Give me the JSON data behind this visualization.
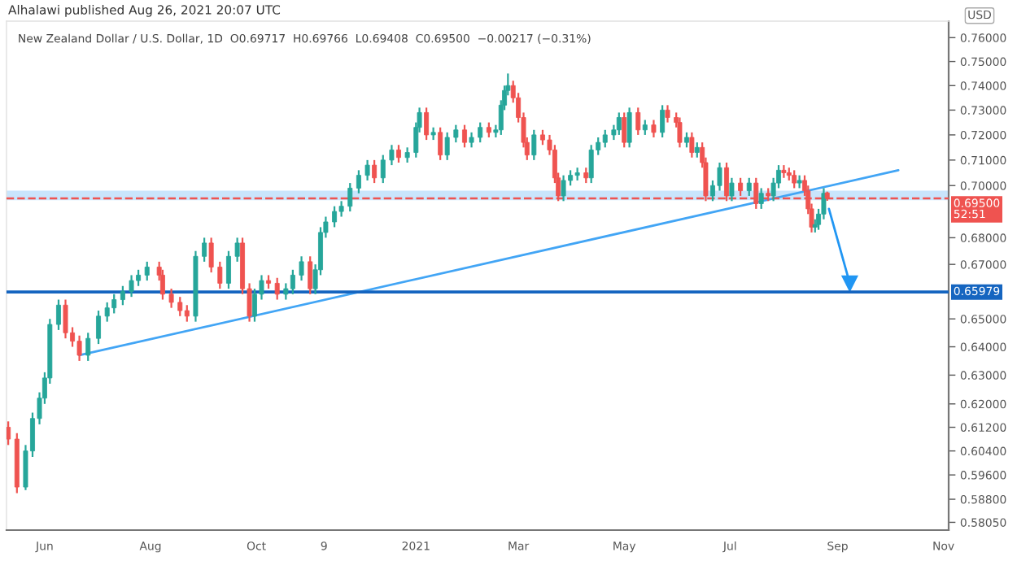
{
  "chart_data": {
    "type": "candlestick",
    "title": "Alhalawi published Aug 26, 2021 20:07 UTC",
    "subtitle": "New Zealand Dollar / U.S. Dollar, 1D  O0.69717  H0.69766  L0.69408  C0.69500  −0.00217 (−0.31%)",
    "ylabel": "USD",
    "log": true,
    "x": [
      "2020-05-11",
      "2020-05-16",
      "2020-05-21",
      "2020-05-25",
      "2020-05-29",
      "2020-06-01",
      "2020-06-04",
      "2020-06-09",
      "2020-06-13",
      "2020-06-17",
      "2020-06-21",
      "2020-06-26",
      "2020-07-02",
      "2020-07-07",
      "2020-07-11",
      "2020-07-16",
      "2020-07-21",
      "2020-07-25",
      "2020-07-30",
      "2020-08-06",
      "2020-08-08",
      "2020-08-13",
      "2020-08-18",
      "2020-08-22",
      "2020-08-27",
      "2020-09-01",
      "2020-09-05",
      "2020-09-10",
      "2020-09-15",
      "2020-09-20",
      "2020-09-23",
      "2020-09-27",
      "2020-09-30",
      "2020-10-04",
      "2020-10-08",
      "2020-10-13",
      "2020-10-18",
      "2020-10-22",
      "2020-10-27",
      "2020-11-01",
      "2020-11-04",
      "2020-11-07",
      "2020-11-10",
      "2020-11-15",
      "2020-11-19",
      "2020-11-24",
      "2020-11-29",
      "2020-12-04",
      "2020-12-08",
      "2020-12-13",
      "2020-12-18",
      "2020-12-22",
      "2020-12-27",
      "2021-01-01",
      "2021-01-03",
      "2021-01-07",
      "2021-01-11",
      "2021-01-15",
      "2021-01-19",
      "2021-01-24",
      "2021-01-29",
      "2021-02-02",
      "2021-02-07",
      "2021-02-12",
      "2021-02-16",
      "2021-02-19",
      "2021-02-21",
      "2021-02-23",
      "2021-02-26",
      "2021-03-01",
      "2021-03-04",
      "2021-03-06",
      "2021-03-10",
      "2021-03-15",
      "2021-03-19",
      "2021-03-22",
      "2021-03-24",
      "2021-03-27",
      "2021-03-31",
      "2021-04-04",
      "2021-04-09",
      "2021-04-12",
      "2021-04-16",
      "2021-04-20",
      "2021-04-25",
      "2021-04-28",
      "2021-05-01",
      "2021-05-04",
      "2021-05-09",
      "2021-05-13",
      "2021-05-18",
      "2021-05-23",
      "2021-05-26",
      "2021-05-31",
      "2021-06-02",
      "2021-06-06",
      "2021-06-09",
      "2021-06-12",
      "2021-06-15",
      "2021-06-17",
      "2021-06-21",
      "2021-06-25",
      "2021-06-29",
      "2021-07-02",
      "2021-07-07",
      "2021-07-12",
      "2021-07-16",
      "2021-07-19",
      "2021-07-23",
      "2021-07-26",
      "2021-07-29",
      "2021-08-01",
      "2021-08-04",
      "2021-08-07",
      "2021-08-10",
      "2021-08-13",
      "2021-08-15",
      "2021-08-17",
      "2021-08-19",
      "2021-08-21",
      "2021-08-24",
      "2021-08-26"
    ],
    "ohlc": [
      [
        0.612,
        0.614,
        0.606,
        0.608
      ],
      [
        0.608,
        0.61,
        0.59,
        0.592
      ],
      [
        0.592,
        0.606,
        0.591,
        0.604
      ],
      [
        0.604,
        0.617,
        0.602,
        0.615
      ],
      [
        0.615,
        0.624,
        0.613,
        0.622
      ],
      [
        0.622,
        0.631,
        0.62,
        0.629
      ],
      [
        0.629,
        0.65,
        0.627,
        0.648
      ],
      [
        0.648,
        0.657,
        0.646,
        0.655
      ],
      [
        0.655,
        0.657,
        0.643,
        0.645
      ],
      [
        0.645,
        0.647,
        0.64,
        0.642
      ],
      [
        0.642,
        0.644,
        0.635,
        0.637
      ],
      [
        0.637,
        0.645,
        0.635,
        0.643
      ],
      [
        0.643,
        0.653,
        0.641,
        0.651
      ],
      [
        0.651,
        0.656,
        0.649,
        0.654
      ],
      [
        0.654,
        0.659,
        0.652,
        0.657
      ],
      [
        0.657,
        0.662,
        0.655,
        0.66
      ],
      [
        0.66,
        0.666,
        0.658,
        0.664
      ],
      [
        0.664,
        0.668,
        0.662,
        0.666
      ],
      [
        0.666,
        0.671,
        0.664,
        0.669
      ],
      [
        0.669,
        0.671,
        0.664,
        0.666
      ],
      [
        0.666,
        0.668,
        0.657,
        0.659
      ],
      [
        0.659,
        0.661,
        0.654,
        0.656
      ],
      [
        0.656,
        0.658,
        0.651,
        0.653
      ],
      [
        0.653,
        0.655,
        0.649,
        0.651
      ],
      [
        0.651,
        0.675,
        0.649,
        0.673
      ],
      [
        0.673,
        0.68,
        0.671,
        0.678
      ],
      [
        0.678,
        0.68,
        0.667,
        0.669
      ],
      [
        0.669,
        0.671,
        0.661,
        0.663
      ],
      [
        0.663,
        0.675,
        0.661,
        0.673
      ],
      [
        0.673,
        0.68,
        0.671,
        0.678
      ],
      [
        0.678,
        0.68,
        0.659,
        0.661
      ],
      [
        0.661,
        0.663,
        0.649,
        0.651
      ],
      [
        0.651,
        0.661,
        0.649,
        0.659
      ],
      [
        0.659,
        0.666,
        0.657,
        0.664
      ],
      [
        0.664,
        0.666,
        0.661,
        0.663
      ],
      [
        0.663,
        0.665,
        0.657,
        0.659
      ],
      [
        0.659,
        0.663,
        0.657,
        0.661
      ],
      [
        0.661,
        0.668,
        0.659,
        0.666
      ],
      [
        0.666,
        0.673,
        0.664,
        0.671
      ],
      [
        0.671,
        0.673,
        0.659,
        0.661
      ],
      [
        0.661,
        0.67,
        0.659,
        0.668
      ],
      [
        0.668,
        0.684,
        0.666,
        0.682
      ],
      [
        0.682,
        0.688,
        0.68,
        0.686
      ],
      [
        0.686,
        0.692,
        0.684,
        0.69
      ],
      [
        0.69,
        0.694,
        0.688,
        0.692
      ],
      [
        0.692,
        0.701,
        0.69,
        0.699
      ],
      [
        0.699,
        0.706,
        0.697,
        0.704
      ],
      [
        0.704,
        0.71,
        0.702,
        0.708
      ],
      [
        0.708,
        0.71,
        0.701,
        0.703
      ],
      [
        0.703,
        0.712,
        0.701,
        0.71
      ],
      [
        0.71,
        0.716,
        0.708,
        0.714
      ],
      [
        0.714,
        0.716,
        0.709,
        0.711
      ],
      [
        0.711,
        0.715,
        0.709,
        0.713
      ],
      [
        0.713,
        0.725,
        0.711,
        0.723
      ],
      [
        0.723,
        0.731,
        0.721,
        0.729
      ],
      [
        0.729,
        0.731,
        0.718,
        0.72
      ],
      [
        0.72,
        0.723,
        0.718,
        0.721
      ],
      [
        0.721,
        0.723,
        0.71,
        0.712
      ],
      [
        0.712,
        0.721,
        0.71,
        0.719
      ],
      [
        0.719,
        0.724,
        0.717,
        0.722
      ],
      [
        0.722,
        0.724,
        0.715,
        0.717
      ],
      [
        0.717,
        0.721,
        0.715,
        0.719
      ],
      [
        0.719,
        0.725,
        0.717,
        0.723
      ],
      [
        0.723,
        0.725,
        0.719,
        0.721
      ],
      [
        0.721,
        0.724,
        0.719,
        0.722
      ],
      [
        0.722,
        0.734,
        0.72,
        0.732
      ],
      [
        0.732,
        0.74,
        0.73,
        0.738
      ],
      [
        0.738,
        0.745,
        0.736,
        0.74
      ],
      [
        0.74,
        0.742,
        0.733,
        0.735
      ],
      [
        0.735,
        0.737,
        0.725,
        0.727
      ],
      [
        0.727,
        0.729,
        0.715,
        0.717
      ],
      [
        0.717,
        0.719,
        0.71,
        0.712
      ],
      [
        0.712,
        0.722,
        0.71,
        0.72
      ],
      [
        0.72,
        0.722,
        0.716,
        0.718
      ],
      [
        0.718,
        0.72,
        0.712,
        0.714
      ],
      [
        0.714,
        0.716,
        0.701,
        0.703
      ],
      [
        0.703,
        0.705,
        0.694,
        0.696
      ],
      [
        0.696,
        0.704,
        0.694,
        0.702
      ],
      [
        0.702,
        0.706,
        0.7,
        0.704
      ],
      [
        0.704,
        0.707,
        0.702,
        0.705
      ],
      [
        0.705,
        0.707,
        0.701,
        0.703
      ],
      [
        0.703,
        0.716,
        0.701,
        0.714
      ],
      [
        0.714,
        0.719,
        0.712,
        0.717
      ],
      [
        0.717,
        0.722,
        0.715,
        0.72
      ],
      [
        0.72,
        0.724,
        0.718,
        0.722
      ],
      [
        0.722,
        0.729,
        0.72,
        0.727
      ],
      [
        0.727,
        0.729,
        0.715,
        0.717
      ],
      [
        0.717,
        0.731,
        0.715,
        0.729
      ],
      [
        0.729,
        0.731,
        0.72,
        0.722
      ],
      [
        0.722,
        0.726,
        0.72,
        0.724
      ],
      [
        0.724,
        0.726,
        0.719,
        0.721
      ],
      [
        0.721,
        0.732,
        0.719,
        0.73
      ],
      [
        0.73,
        0.732,
        0.725,
        0.727
      ],
      [
        0.727,
        0.729,
        0.723,
        0.725
      ],
      [
        0.725,
        0.727,
        0.715,
        0.717
      ],
      [
        0.717,
        0.721,
        0.715,
        0.719
      ],
      [
        0.719,
        0.721,
        0.711,
        0.713
      ],
      [
        0.713,
        0.717,
        0.711,
        0.715
      ],
      [
        0.715,
        0.717,
        0.707,
        0.709
      ],
      [
        0.709,
        0.711,
        0.694,
        0.696
      ],
      [
        0.696,
        0.702,
        0.694,
        0.7
      ],
      [
        0.7,
        0.709,
        0.698,
        0.707
      ],
      [
        0.707,
        0.709,
        0.694,
        0.696
      ],
      [
        0.696,
        0.703,
        0.694,
        0.701
      ],
      [
        0.701,
        0.703,
        0.696,
        0.698
      ],
      [
        0.698,
        0.703,
        0.696,
        0.701
      ],
      [
        0.701,
        0.703,
        0.691,
        0.693
      ],
      [
        0.693,
        0.699,
        0.691,
        0.697
      ],
      [
        0.697,
        0.699,
        0.694,
        0.696
      ],
      [
        0.696,
        0.703,
        0.694,
        0.701
      ],
      [
        0.701,
        0.708,
        0.699,
        0.706
      ],
      [
        0.706,
        0.708,
        0.703,
        0.705
      ],
      [
        0.705,
        0.707,
        0.702,
        0.704
      ],
      [
        0.704,
        0.706,
        0.699,
        0.701
      ],
      [
        0.701,
        0.704,
        0.699,
        0.702
      ],
      [
        0.702,
        0.704,
        0.696,
        0.698
      ],
      [
        0.698,
        0.7,
        0.689,
        0.691
      ],
      [
        0.691,
        0.693,
        0.682,
        0.684
      ],
      [
        0.684,
        0.687,
        0.682,
        0.685
      ],
      [
        0.685,
        0.691,
        0.683,
        0.689
      ],
      [
        0.689,
        0.699,
        0.687,
        0.697
      ],
      [
        0.69717,
        0.69766,
        0.69408,
        0.695
      ]
    ],
    "series": [
      {
        "type": "line",
        "color": "#42a5f5",
        "x": [
          "2020-06-21",
          "2021-10-06"
        ],
        "values": [
          0.637,
          0.706
        ]
      },
      {
        "type": "line",
        "color": "#2196f3",
        "marker": "triangle",
        "x": [
          "2021-08-27",
          "2021-09-08"
        ],
        "values": [
          0.691,
          0.663
        ]
      }
    ],
    "ref_lines": [
      {
        "axis": "y",
        "value": 0.695,
        "label": "0.69500\n52:51",
        "color": "#ef5350",
        "line_style": "dashed"
      },
      {
        "axis": "y",
        "value": 0.65979,
        "label": "0.65979",
        "color": "#1565c0",
        "line_style": "solid"
      }
    ],
    "bands": [
      {
        "axis": "y",
        "from": 0.6943,
        "to": 0.698,
        "color": "#bbdefb"
      }
    ],
    "xlim": [
      "2020-05-10",
      "2021-11-04"
    ],
    "xticks": [
      {
        "value": "2020-06-01",
        "label": "Jun"
      },
      {
        "value": "2020-08-01",
        "label": "Aug"
      },
      {
        "value": "2020-10-01",
        "label": "Oct"
      },
      {
        "value": "2020-11-09",
        "label": "9"
      },
      {
        "value": "2021-01-01",
        "label": "2021"
      },
      {
        "value": "2021-03-01",
        "label": "Mar"
      },
      {
        "value": "2021-05-01",
        "label": "May"
      },
      {
        "value": "2021-07-01",
        "label": "Jul"
      },
      {
        "value": "2021-09-01",
        "label": "Sep"
      },
      {
        "value": "2021-11-01",
        "label": "Nov"
      }
    ],
    "ylim": [
      0.578,
      0.767
    ],
    "yticks": [
      {
        "value": 0.76,
        "label": "0.76000"
      },
      {
        "value": 0.75,
        "label": "0.75000"
      },
      {
        "value": 0.74,
        "label": "0.74000"
      },
      {
        "value": 0.73,
        "label": "0.73000"
      },
      {
        "value": 0.72,
        "label": "0.72000"
      },
      {
        "value": 0.71,
        "label": "0.71000"
      },
      {
        "value": 0.7,
        "label": "0.70000"
      },
      {
        "value": 0.68,
        "label": "0.68000"
      },
      {
        "value": 0.67,
        "label": "0.67000"
      },
      {
        "value": 0.65,
        "label": "0.65000"
      },
      {
        "value": 0.64,
        "label": "0.64000"
      },
      {
        "value": 0.63,
        "label": "0.63000"
      },
      {
        "value": 0.62,
        "label": "0.62000"
      },
      {
        "value": 0.612,
        "label": "0.61200"
      },
      {
        "value": 0.604,
        "label": "0.60400"
      },
      {
        "value": 0.596,
        "label": "0.59600"
      },
      {
        "value": 0.588,
        "label": "0.58800"
      },
      {
        "value": 0.5805,
        "label": "0.58050"
      }
    ]
  }
}
